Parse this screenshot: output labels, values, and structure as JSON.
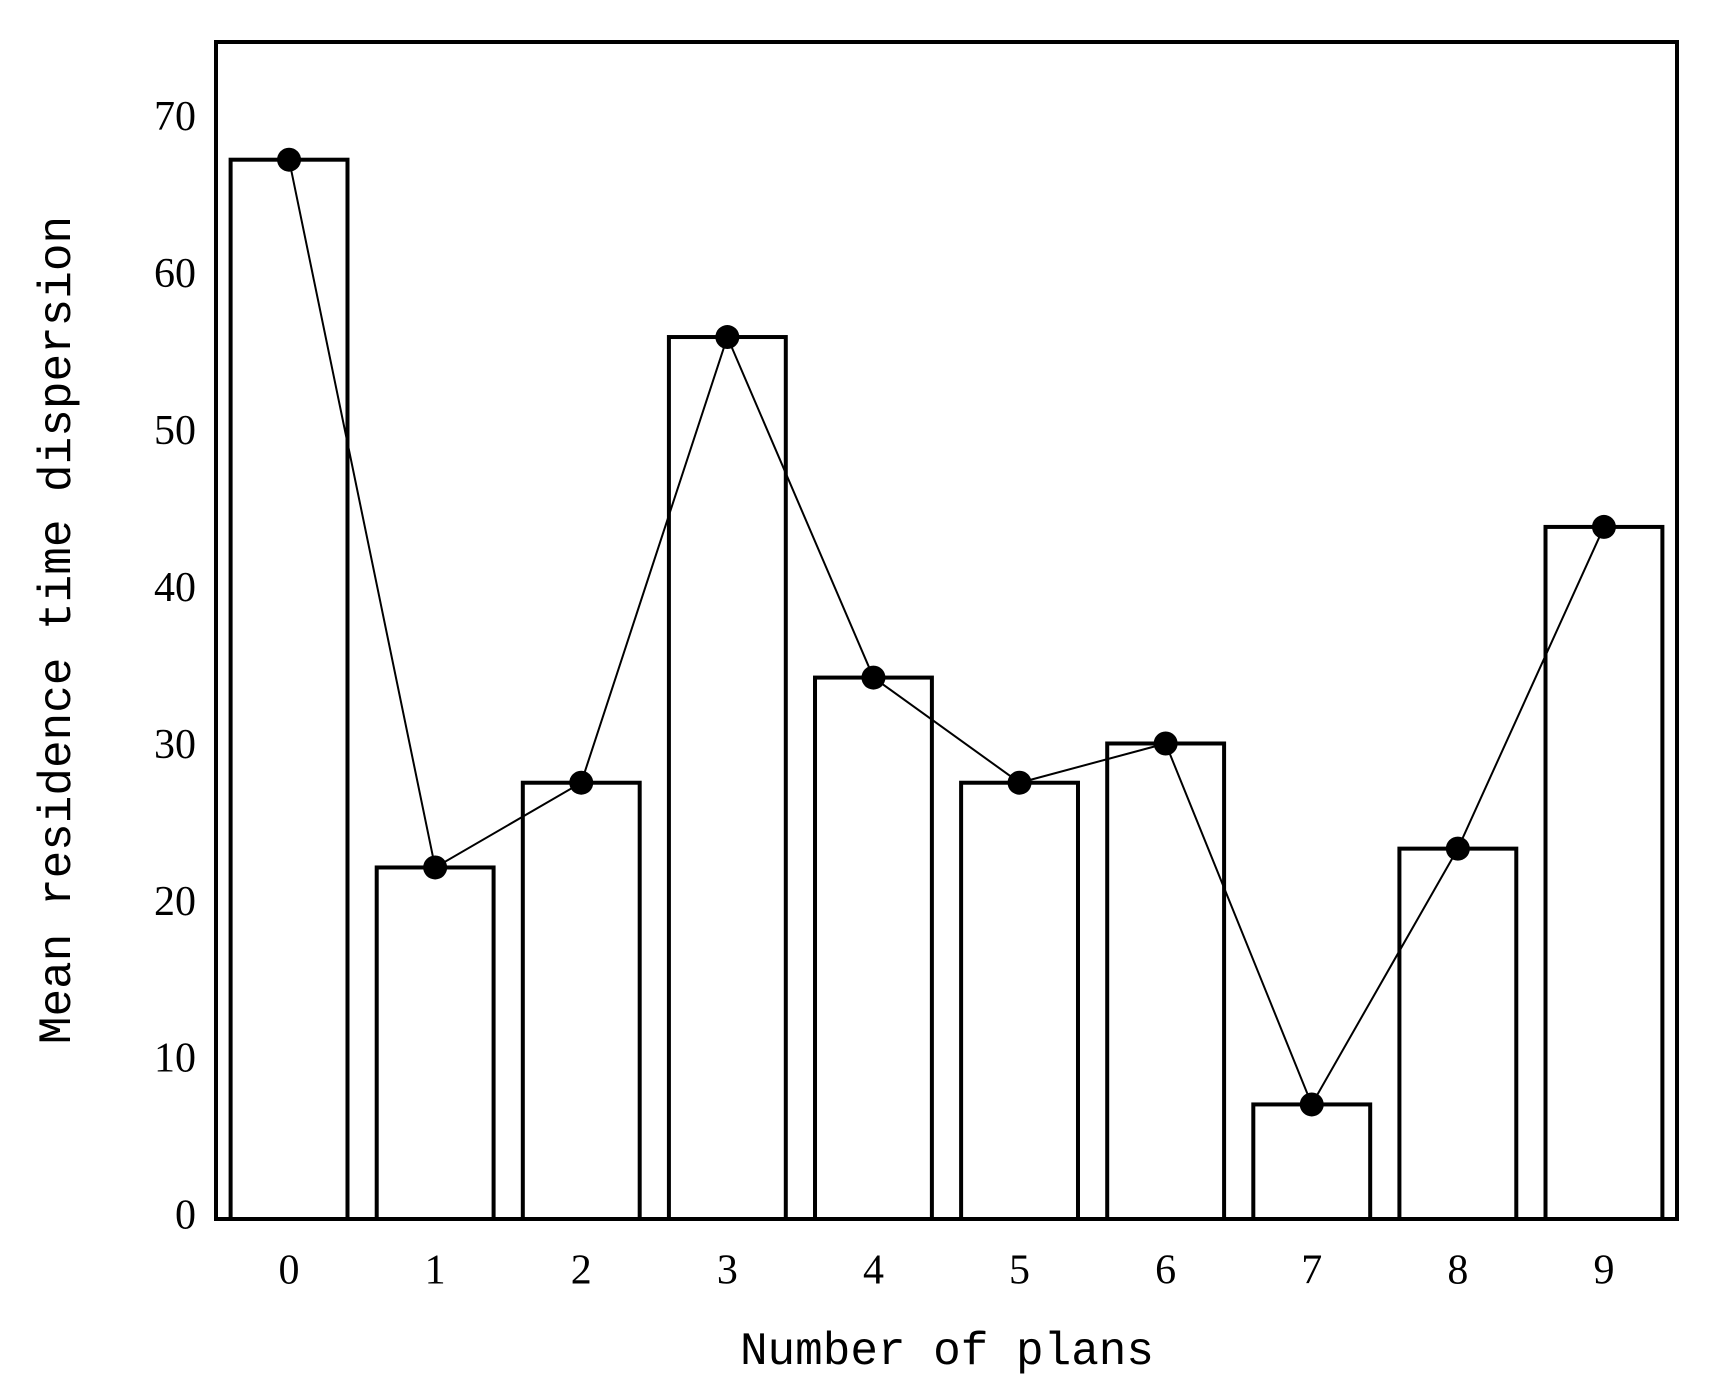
{
  "chart_data": {
    "type": "bar",
    "x_label": "Number of plans",
    "y_label": "Mean residence time dispersion",
    "categories": [
      "0",
      "1",
      "2",
      "3",
      "4",
      "5",
      "6",
      "7",
      "8",
      "9"
    ],
    "values": [
      67.5,
      22.4,
      27.8,
      56.2,
      34.5,
      27.8,
      30.3,
      7.3,
      23.6,
      44.1
    ],
    "color": "#ffffff",
    "edge_color": "#000000",
    "line_overlay": true,
    "line_color": "#000000",
    "marker_color": "#000000",
    "ylim": [
      0,
      75
    ],
    "yticks": [
      0,
      10,
      20,
      30,
      40,
      50,
      60,
      70
    ],
    "grid": false
  }
}
